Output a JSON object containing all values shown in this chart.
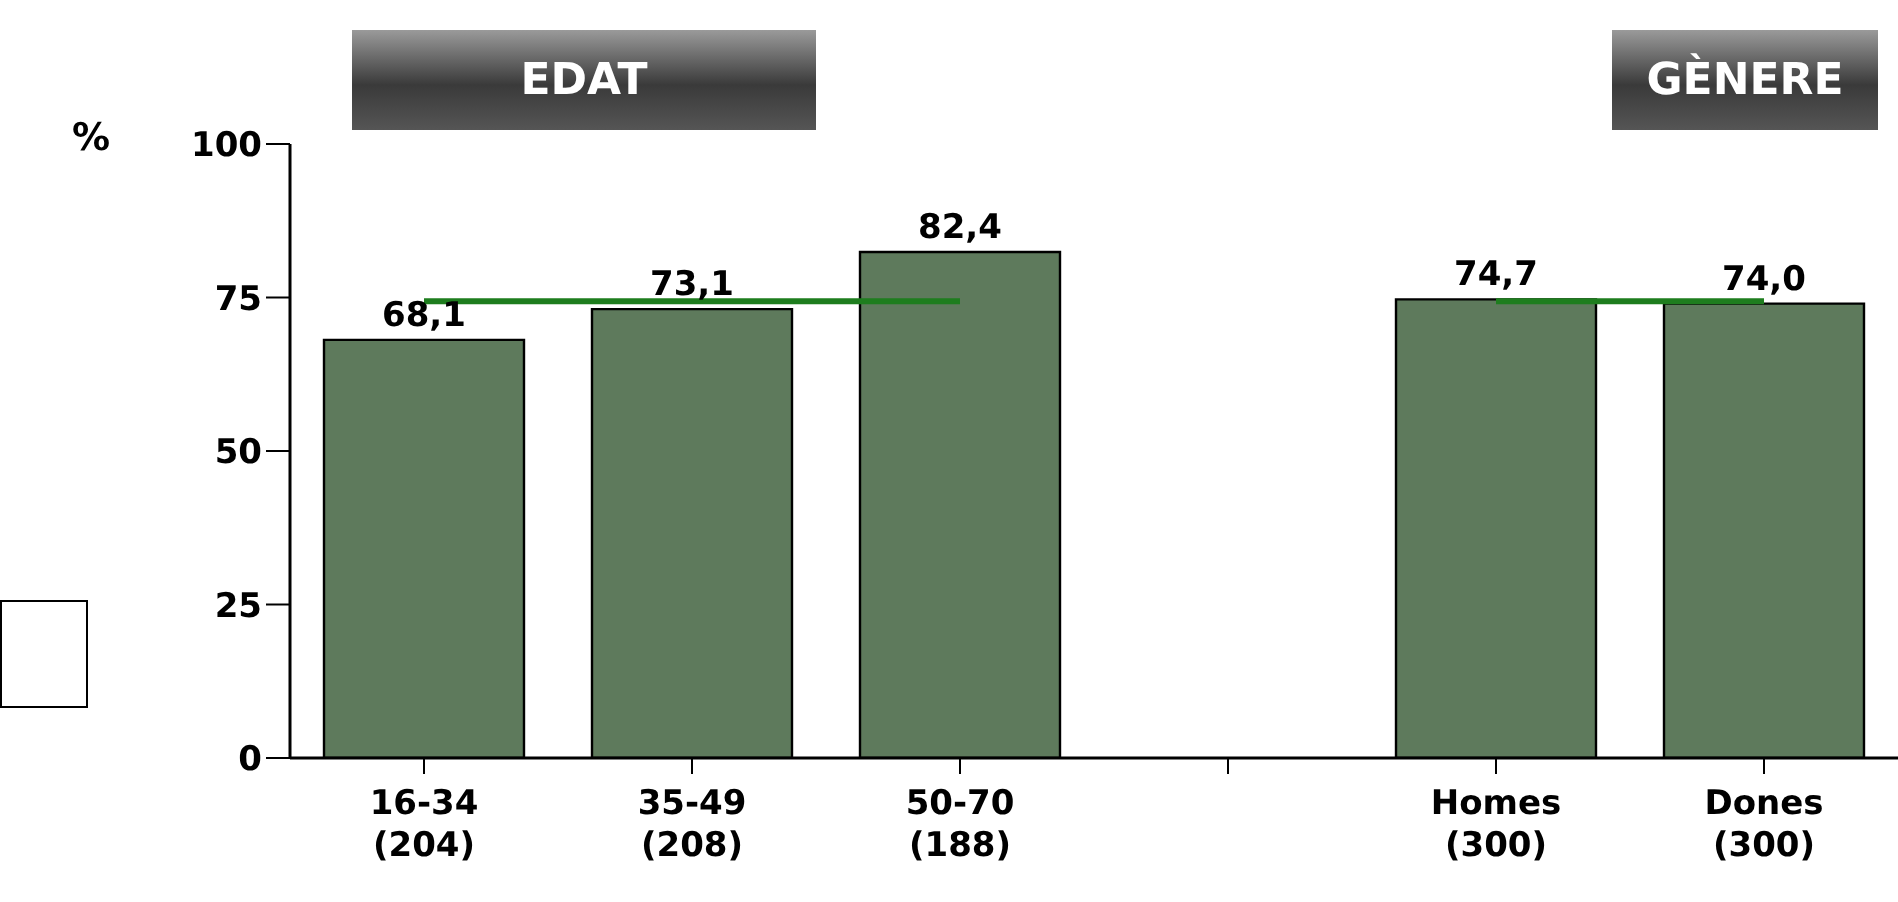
{
  "chart_data": {
    "type": "bar",
    "ylabel": "%",
    "annotations": [
      "EDAT",
      "GÈNERE"
    ],
    "categories": [
      "16-34\n(204)",
      "35-49\n(208)",
      "50-70\n(188)",
      null,
      "Homes\n(300)",
      "Dones\n(300)"
    ],
    "series": [
      {
        "color": "#5e7a5c",
        "values": [
          68.1,
          73.1,
          82.4,
          null,
          74.7,
          74.0
        ],
        "value_labels": [
          "68,1",
          "73,1",
          "82,4",
          null,
          "74,7",
          "74,0"
        ]
      },
      {
        "type": "line",
        "color": "#1e7d1e",
        "values": [
          74.4,
          74.4,
          74.4,
          null,
          74.4,
          74.4
        ]
      }
    ],
    "ylim": [
      0,
      100
    ],
    "yticks": [
      0,
      25,
      50,
      75,
      100
    ],
    "grid": false,
    "legend": false,
    "marker": "none",
    "line_style": "solid"
  }
}
